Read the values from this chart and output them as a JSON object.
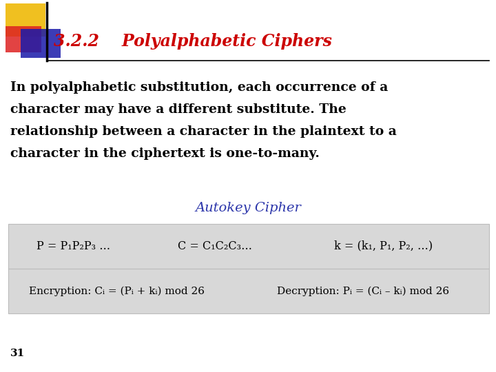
{
  "title": "3.2.2    Polyalphabetic Ciphers",
  "title_color": "#cc0000",
  "bg_color": "#ffffff",
  "body_lines": [
    "In polyalphabetic substitution, each occurrence of a",
    "character may have a different substitute. The",
    "relationship between a character in the plaintext to a",
    "character in the ciphertext is one-to-many."
  ],
  "autokey_label": "Autokey Cipher",
  "autokey_color": "#2b35aa",
  "box_bg": "#d8d8d8",
  "box_edge": "#bbbbbb",
  "box_row1_a": "P = P₁P₂P₃ …",
  "box_row1_b": "C = C₁C₂C₃…",
  "box_row1_c": "k = (k₁, P₁, P₂, …)",
  "box_row2_left": "Encryption: Cᵢ = (Pᵢ + kᵢ) mod 26",
  "box_row2_right": "Decryption: Pᵢ = (Cᵢ – kᵢ) mod 26",
  "page_number": "31",
  "decoration_yellow": "#f0c020",
  "decoration_red": "#dd2222",
  "decoration_blue": "#1a1aaa",
  "line_color": "#000000"
}
